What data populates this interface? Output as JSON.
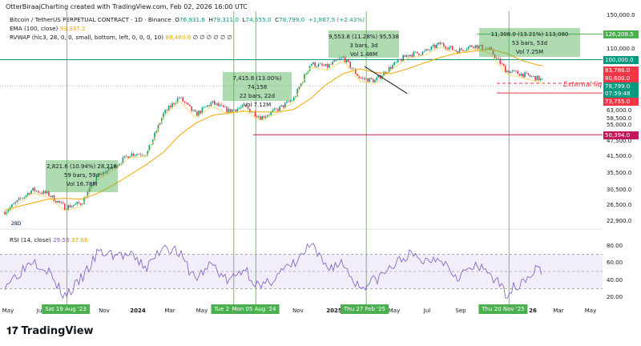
{
  "header": {
    "credit": "OtterBiraajCharting created with TradingView.com, Feb 02, 2026 16:00 UTC",
    "symbol": "Bitcoin / TetherUS PERPETUAL CONTRACT · 1D · Binance",
    "open_l": "O",
    "open": "76,931.6",
    "high_l": "H",
    "high": "79,311.0",
    "low_l": "L",
    "low": "74,555.0",
    "close_l": "C",
    "close": "78,799.0",
    "change": "+1,867.5 (+2.43%)",
    "ema": "EMA (100, close)",
    "ema_val": "93,337.2",
    "rvwap": "RVWAP (hlc3, 28, 0, 0, small, bottom, left, 0, 0, 0, 10)",
    "rvwap_val": "88,460.6",
    "rvwap_extra": "∅ ∅ ∅ ∅ ∅ ∅"
  },
  "rsi": {
    "label": "RSI (14, close)",
    "value": "29.55",
    "ma": "37.66",
    "ticks": [
      "80.00",
      "60.00",
      "40.00",
      "20.00"
    ]
  },
  "colors": {
    "up": "#089981",
    "down": "#f23645",
    "ema": "#f7a600",
    "rvwap": "#ffd54f",
    "rsi": "#7e57c2",
    "box": "#4caf50"
  },
  "price_axis": [
    "150,000.0",
    "110,000.0",
    "63,000.0",
    "58,500.0",
    "55,000.0",
    "47,500.0",
    "41,500.0",
    "35,500.0",
    "30,500.0",
    "26,500.0",
    "22,900.0"
  ],
  "price_tags": [
    {
      "v": "126,208.5",
      "c": "#4caf50"
    },
    {
      "v": "100,000.0",
      "c": "#089981"
    },
    {
      "v": "83,786.0",
      "c": "#f23645"
    },
    {
      "v": "80,600.0",
      "c": "#f23645"
    },
    {
      "v": "78,799.0",
      "c": "#089981"
    },
    {
      "v": "07:59:48",
      "c": "#089981"
    },
    {
      "v": "73,755.0",
      "c": "#f23645"
    },
    {
      "v": "50,394.0",
      "c": "#c2185b"
    }
  ],
  "external_label": "External liq",
  "corner_label": "28D",
  "time_axis": [
    {
      "t": "May",
      "b": false
    },
    {
      "t": "Jul",
      "b": false
    },
    {
      "t": "Nov",
      "b": false
    },
    {
      "t": "2024",
      "b": true
    },
    {
      "t": "Mar",
      "b": false
    },
    {
      "t": "May",
      "b": false
    },
    {
      "t": "Nov",
      "b": false
    },
    {
      "t": "2025",
      "b": true
    },
    {
      "t": "May",
      "b": false
    },
    {
      "t": "Jul",
      "b": false
    },
    {
      "t": "Sep",
      "b": false
    },
    {
      "t": "26",
      "b": true
    },
    {
      "t": "Mar",
      "b": false
    },
    {
      "t": "May",
      "b": false
    }
  ],
  "date_markers": [
    "Sat 19 Aug '23",
    "Tue 25",
    "Mon 05 Aug '24",
    "Thu 27 Feb '25",
    "Thu 20 Nov '25"
  ],
  "measure_boxes": [
    {
      "l1": "2,821.6 (10.94%) 28,218",
      "l2": "59 bars, 59d",
      "l3": "Vol 16.78M"
    },
    {
      "l1": "7,415.8 (13.00%) 74,158",
      "l2": "22 bars, 22d",
      "l3": "Vol 7.12M"
    },
    {
      "l1": "9,553.8 (11.28%) 95,538",
      "l2": "3 bars, 3d",
      "l3": "Vol 1.48M"
    },
    {
      "l1": "11,308.0 (13.21%) 113,080",
      "l2": "53 bars, 53d",
      "l3": "Vol 7.25M"
    }
  ],
  "brand": "TradingView",
  "chart_data": {
    "type": "candlestick",
    "scale": "log",
    "interval": "1D",
    "x": [
      "2023-05",
      "2023-06",
      "2023-07",
      "2023-08",
      "2023-09",
      "2023-10",
      "2023-11",
      "2023-12",
      "2024-01",
      "2024-02",
      "2024-03",
      "2024-04",
      "2024-05",
      "2024-06",
      "2024-07",
      "2024-08",
      "2024-09",
      "2024-10",
      "2024-11",
      "2024-12",
      "2025-01",
      "2025-02",
      "2025-03",
      "2025-04",
      "2025-05",
      "2025-06",
      "2025-07",
      "2025-08",
      "2025-09",
      "2025-10",
      "2025-11",
      "2025-12",
      "2026-01",
      "2026-02"
    ],
    "close": [
      27000,
      30500,
      29300,
      26000,
      27000,
      34500,
      37700,
      42300,
      42500,
      61000,
      71000,
      60500,
      67500,
      62700,
      65000,
      59000,
      63500,
      70000,
      96500,
      93500,
      102000,
      84500,
      82500,
      94000,
      104500,
      107000,
      115700,
      108200,
      114000,
      109500,
      90500,
      87500,
      84000,
      78799
    ],
    "ema100": [
      26000,
      27000,
      28000,
      28200,
      28000,
      29500,
      32000,
      35000,
      38500,
      43000,
      50000,
      56000,
      60000,
      61500,
      62500,
      62000,
      62000,
      63500,
      70000,
      80000,
      88000,
      92000,
      89000,
      88000,
      92000,
      97000,
      102000,
      106000,
      108000,
      110000,
      106000,
      99000,
      95000,
      93337
    ],
    "rsi": [
      45,
      65,
      52,
      22,
      42,
      72,
      70,
      68,
      55,
      82,
      72,
      42,
      60,
      38,
      55,
      30,
      48,
      58,
      82,
      55,
      60,
      32,
      40,
      55,
      70,
      62,
      68,
      45,
      55,
      50,
      25,
      40,
      55,
      29.55
    ],
    "hlines": [
      126208.5,
      100000,
      83786,
      80600,
      78799,
      73755,
      50394
    ]
  }
}
